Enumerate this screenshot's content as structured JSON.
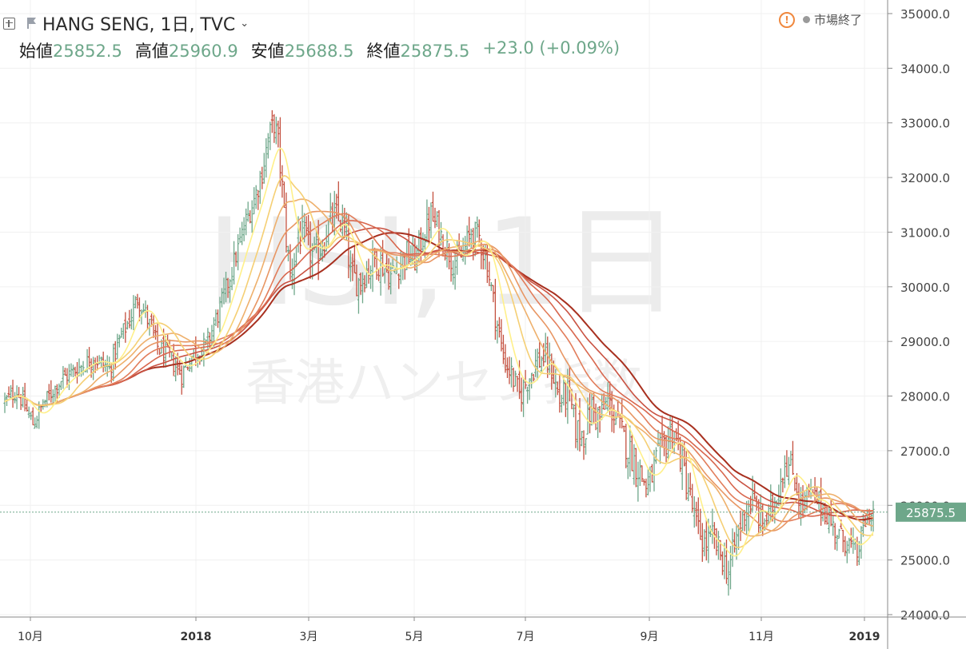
{
  "header": {
    "symbol_title": "HANG SENG, 1日, TVC",
    "open_label": "始値",
    "open_value": "25852.5",
    "high_label": "高値",
    "high_value": "25960.9",
    "low_label": "安値",
    "low_value": "25688.5",
    "close_label": "終値",
    "close_value": "25875.5",
    "change": "+23.0 (+0.09%)",
    "market_status": "市場終了"
  },
  "watermark": {
    "symbol": "HSI, 1日",
    "name": "香港ハンセン指数"
  },
  "colors": {
    "up": "#6ea78a",
    "down": "#c4503f",
    "price_tag": "#6ea78a",
    "ribbon": [
      "#fff08a",
      "#f5cf74",
      "#eeb06c",
      "#e89663",
      "#e27d5b",
      "#d8674e",
      "#c95242",
      "#a8301f"
    ]
  },
  "chart_data": {
    "type": "candlestick",
    "y_axis": {
      "min": 24000,
      "max": 35000,
      "ticks": [
        "35000.0",
        "34000.0",
        "33000.0",
        "32000.0",
        "31000.0",
        "30000.0",
        "29000.0",
        "28000.0",
        "27000.0",
        "26000.0",
        "25000.0",
        "24000.0"
      ]
    },
    "x_axis": {
      "labels": [
        "10月",
        "2018",
        "3月",
        "5月",
        "7月",
        "9月",
        "11月",
        "2019"
      ]
    },
    "last_price": 25875.5,
    "price_tag": "25875.5",
    "series": [
      {
        "name": "",
        "date_range": [
          "2017-09",
          "2019-01"
        ],
        "close_path": [
          [
            0,
            27900
          ],
          [
            6,
            28100
          ],
          [
            14,
            27500
          ],
          [
            20,
            27900
          ],
          [
            28,
            28300
          ],
          [
            36,
            28500
          ],
          [
            44,
            28700
          ],
          [
            52,
            28500
          ],
          [
            58,
            29100
          ],
          [
            62,
            29400
          ],
          [
            66,
            29800
          ],
          [
            70,
            29500
          ],
          [
            76,
            28900
          ],
          [
            82,
            28700
          ],
          [
            88,
            28400
          ],
          [
            94,
            28800
          ],
          [
            100,
            28900
          ],
          [
            104,
            29300
          ],
          [
            108,
            29700
          ],
          [
            112,
            30200
          ],
          [
            116,
            30700
          ],
          [
            120,
            31200
          ],
          [
            124,
            31600
          ],
          [
            128,
            32100
          ],
          [
            131,
            32700
          ],
          [
            134,
            33000
          ],
          [
            136,
            32600
          ],
          [
            138,
            31800
          ],
          [
            140,
            30900
          ],
          [
            142,
            30200
          ],
          [
            144,
            30500
          ],
          [
            146,
            31000
          ],
          [
            150,
            30800
          ],
          [
            154,
            30500
          ],
          [
            158,
            30800
          ],
          [
            162,
            31200
          ],
          [
            166,
            31300
          ],
          [
            170,
            30900
          ],
          [
            172,
            30200
          ],
          [
            176,
            30100
          ],
          [
            180,
            30300
          ],
          [
            184,
            30500
          ],
          [
            188,
            30400
          ],
          [
            192,
            30200
          ],
          [
            196,
            30400
          ],
          [
            200,
            30600
          ],
          [
            204,
            30500
          ],
          [
            208,
            30900
          ],
          [
            212,
            31300
          ],
          [
            216,
            31000
          ],
          [
            220,
            30700
          ],
          [
            224,
            30400
          ],
          [
            228,
            30600
          ],
          [
            232,
            31000
          ],
          [
            236,
            30900
          ],
          [
            240,
            30400
          ],
          [
            244,
            29500
          ],
          [
            248,
            28700
          ],
          [
            252,
            28400
          ],
          [
            256,
            28000
          ],
          [
            260,
            28300
          ],
          [
            264,
            28600
          ],
          [
            268,
            28700
          ],
          [
            272,
            28500
          ],
          [
            276,
            27900
          ],
          [
            280,
            28100
          ],
          [
            284,
            27400
          ],
          [
            288,
            27300
          ],
          [
            292,
            27800
          ],
          [
            296,
            27600
          ],
          [
            300,
            27900
          ],
          [
            304,
            27600
          ],
          [
            308,
            27200
          ],
          [
            312,
            26900
          ],
          [
            316,
            26600
          ],
          [
            320,
            26300
          ],
          [
            324,
            26800
          ],
          [
            328,
            27100
          ],
          [
            332,
            27400
          ],
          [
            336,
            26900
          ],
          [
            340,
            26300
          ],
          [
            344,
            25600
          ],
          [
            348,
            25300
          ],
          [
            352,
            25400
          ],
          [
            356,
            25100
          ],
          [
            360,
            24800
          ],
          [
            364,
            25400
          ],
          [
            368,
            25900
          ],
          [
            372,
            26100
          ],
          [
            376,
            25700
          ],
          [
            380,
            25800
          ],
          [
            384,
            26200
          ],
          [
            388,
            26800
          ],
          [
            392,
            26600
          ],
          [
            396,
            26000
          ],
          [
            400,
            26200
          ],
          [
            404,
            26100
          ],
          [
            408,
            25900
          ],
          [
            412,
            25600
          ],
          [
            416,
            25400
          ],
          [
            420,
            25300
          ],
          [
            424,
            25100
          ],
          [
            428,
            25700
          ],
          [
            432,
            25880
          ]
        ],
        "volatility_path": [
          [
            0,
            200
          ],
          [
            120,
            260
          ],
          [
            150,
            380
          ],
          [
            240,
            300
          ],
          [
            330,
            380
          ],
          [
            432,
            240
          ]
        ]
      },
      {
        "name": "",
        "ma_periods": [
          5,
          10,
          15,
          20,
          25,
          30,
          35,
          40
        ]
      }
    ]
  }
}
